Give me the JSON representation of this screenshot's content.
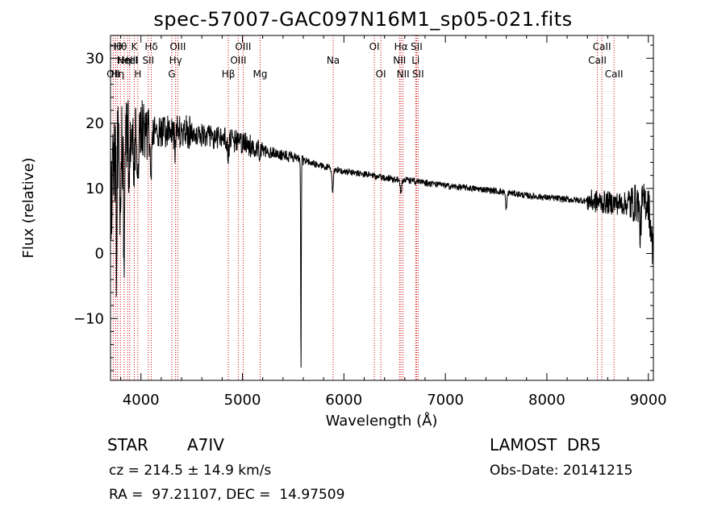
{
  "title": "spec-57007-GAC097N16M1_sp05-021.fits",
  "info": {
    "object_class": "STAR",
    "subclass": "A7IV",
    "survey": "LAMOST  DR5",
    "cz_line": "cz = 214.5 ± 14.9 km/s",
    "obs_date": "Obs-Date: 20141215",
    "coords": "RA =  97.21107, DEC =  14.97509"
  },
  "colors": {
    "spectrum": "#000000",
    "line_marker": "#cc0000",
    "axis": "#000000",
    "background": "#ffffff"
  },
  "chart_data": {
    "type": "line",
    "xlabel": "Wavelength (Å)",
    "ylabel": "Flux (relative)",
    "xlim": [
      3700,
      9050
    ],
    "ylim": [
      -19.5,
      33.5
    ],
    "x_ticks": [
      4000,
      5000,
      6000,
      7000,
      8000,
      9000
    ],
    "y_ticks": [
      -10,
      0,
      10,
      20,
      30
    ],
    "grid": false,
    "series": [
      {
        "continuum_x": [
          3700,
          3750,
          3800,
          3850,
          3900,
          4000,
          4100,
          4200,
          4400,
          4600,
          4800,
          5000,
          5200,
          5400,
          5600,
          5800,
          6000,
          6200,
          6400,
          6600,
          6800,
          7000,
          7200,
          7400,
          7600,
          7800,
          8000,
          8200,
          8400,
          8600,
          8800,
          9000,
          9050
        ],
        "continuum_y": [
          8,
          15,
          18,
          19,
          19.5,
          19.5,
          18.5,
          18.5,
          18.8,
          18.2,
          17.6,
          17,
          15.8,
          15.2,
          14.3,
          13.4,
          12.6,
          12.2,
          11.6,
          11.3,
          10.9,
          10.4,
          10.1,
          9.8,
          9.4,
          8.9,
          8.6,
          8.3,
          8.1,
          7.8,
          7.6,
          8,
          -0.5
        ],
        "features": [
          {
            "x": 3760,
            "depth": 25
          },
          {
            "x": 3798,
            "depth": 12
          },
          {
            "x": 3835,
            "depth": 18
          },
          {
            "x": 3889,
            "depth": 8
          },
          {
            "x": 3933,
            "depth": 8
          },
          {
            "x": 3970,
            "depth": 7
          },
          {
            "x": 4101,
            "depth": 5
          },
          {
            "x": 4340,
            "depth": 3
          },
          {
            "x": 4861,
            "depth": 2.5
          },
          {
            "x": 5577,
            "depth": 33
          },
          {
            "x": 5890,
            "depth": 3.5
          },
          {
            "x": 6563,
            "depth": 2
          },
          {
            "x": 7600,
            "depth": 2.5
          },
          {
            "x": 8920,
            "depth": 5
          }
        ]
      }
    ],
    "line_markers": [
      {
        "x": 3727,
        "label": "OII",
        "row": 3
      },
      {
        "x": 3750,
        "label": "Hθ",
        "row": 1
      },
      {
        "x": 3770,
        "label": "Hη",
        "row": 3
      },
      {
        "x": 3798,
        "label": "Hθ",
        "row": 1
      },
      {
        "x": 3835,
        "label": "Hη",
        "row": 2
      },
      {
        "x": 3869,
        "label": "NeIII",
        "row": 2
      },
      {
        "x": 3889,
        "label": "HeI",
        "row": 2
      },
      {
        "x": 3934,
        "label": "K",
        "row": 1
      },
      {
        "x": 3969,
        "label": "H",
        "row": 3
      },
      {
        "x": 4072,
        "label": "SII",
        "row": 2
      },
      {
        "x": 4102,
        "label": "Hδ",
        "row": 1
      },
      {
        "x": 4304,
        "label": "G",
        "row": 3
      },
      {
        "x": 4341,
        "label": "Hγ",
        "row": 2
      },
      {
        "x": 4363,
        "label": "OIII",
        "row": 1
      },
      {
        "x": 4861,
        "label": "Hβ",
        "row": 3
      },
      {
        "x": 4959,
        "label": "OIII",
        "row": 2
      },
      {
        "x": 5007,
        "label": "OIII",
        "row": 1
      },
      {
        "x": 5175,
        "label": "Mg",
        "row": 3
      },
      {
        "x": 5894,
        "label": "Na",
        "row": 2
      },
      {
        "x": 6300,
        "label": "OI",
        "row": 1
      },
      {
        "x": 6364,
        "label": "OI",
        "row": 3
      },
      {
        "x": 6548,
        "label": "NII",
        "row": 2
      },
      {
        "x": 6563,
        "label": "Hα",
        "row": 1
      },
      {
        "x": 6583,
        "label": "NII",
        "row": 3
      },
      {
        "x": 6707,
        "label": "Li",
        "row": 2
      },
      {
        "x": 6716,
        "label": "SII",
        "row": 1
      },
      {
        "x": 6731,
        "label": "SII",
        "row": 3
      },
      {
        "x": 8498,
        "label": "CaII",
        "row": 2
      },
      {
        "x": 8542,
        "label": "CaII",
        "row": 1
      },
      {
        "x": 8662,
        "label": "CaII",
        "row": 3
      }
    ]
  }
}
